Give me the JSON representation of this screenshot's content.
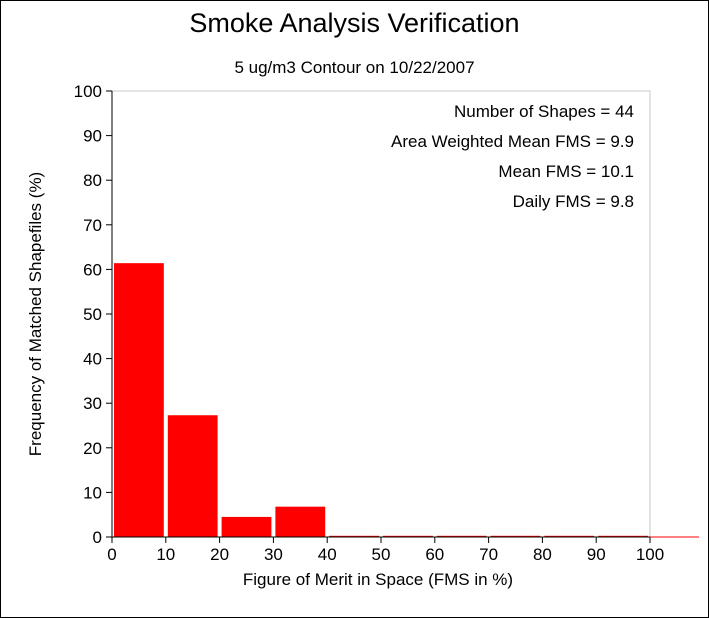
{
  "chart_data": {
    "type": "bar",
    "title": "Smoke Analysis Verification",
    "subtitle": "5 ug/m3 Contour on 10/22/2007",
    "xlabel": "Figure of Merit in Space (FMS in %)",
    "ylabel": "Frequency of Matched Shapefiles (%)",
    "xlim": [
      0,
      100
    ],
    "ylim": [
      0,
      100
    ],
    "xticks": [
      "0",
      "10",
      "20",
      "30",
      "40",
      "50",
      "60",
      "70",
      "80",
      "90",
      "100"
    ],
    "yticks": [
      "0",
      "10",
      "20",
      "30",
      "40",
      "50",
      "60",
      "70",
      "80",
      "90",
      "100"
    ],
    "bins": [
      {
        "from": 0,
        "to": 10,
        "value": 61.4
      },
      {
        "from": 10,
        "to": 20,
        "value": 27.3
      },
      {
        "from": 20,
        "to": 30,
        "value": 4.5
      },
      {
        "from": 30,
        "to": 40,
        "value": 6.8
      },
      {
        "from": 40,
        "to": 50,
        "value": 0
      },
      {
        "from": 50,
        "to": 60,
        "value": 0
      },
      {
        "from": 60,
        "to": 70,
        "value": 0
      },
      {
        "from": 70,
        "to": 80,
        "value": 0
      },
      {
        "from": 80,
        "to": 90,
        "value": 0
      },
      {
        "from": 90,
        "to": 100,
        "value": 0
      }
    ],
    "bar_color": "#ff0000",
    "grid": false,
    "annotations": [
      "Number of Shapes = 44",
      "Area Weighted Mean FMS = 9.9",
      "Mean FMS = 10.1",
      "Daily FMS = 9.8"
    ]
  }
}
